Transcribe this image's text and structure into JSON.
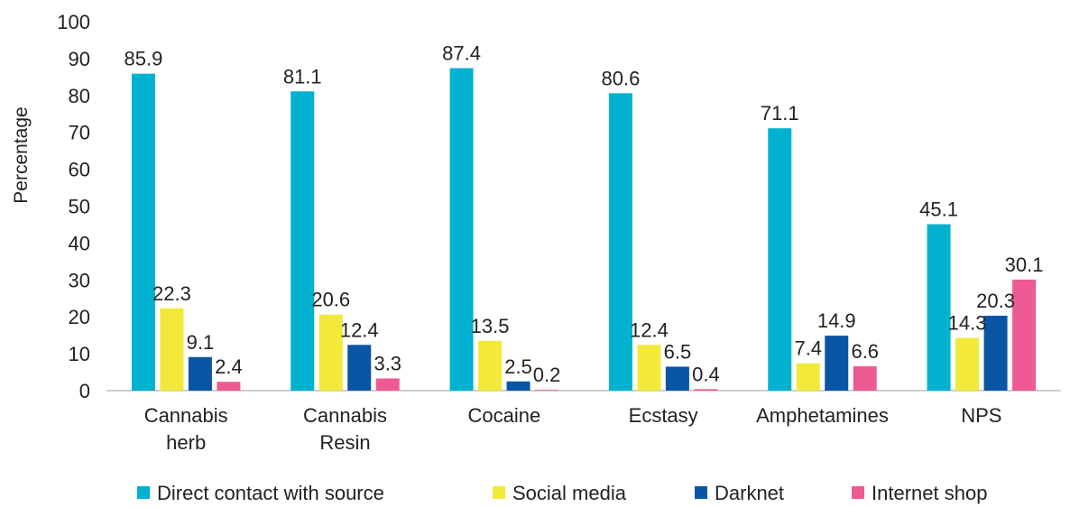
{
  "chart_data": {
    "type": "bar",
    "ylabel": "Percentage",
    "xlabel": "",
    "ylim": [
      0,
      100
    ],
    "yticks": [
      0,
      10,
      20,
      30,
      40,
      50,
      60,
      70,
      80,
      90,
      100
    ],
    "grid": false,
    "legend_position": "bottom",
    "categories": [
      [
        "Cannabis",
        "herb"
      ],
      [
        "Cannabis",
        "Resin"
      ],
      [
        "Cocaine"
      ],
      [
        "Ecstasy"
      ],
      [
        "Amphetamines"
      ],
      [
        "NPS"
      ]
    ],
    "series": [
      {
        "name": "Direct contact with source",
        "color": "#00B2CF",
        "values": [
          85.9,
          81.1,
          87.4,
          80.6,
          71.1,
          45.1
        ]
      },
      {
        "name": "Social media",
        "color": "#F2E93A",
        "values": [
          22.3,
          20.6,
          13.5,
          12.4,
          7.4,
          14.3
        ]
      },
      {
        "name": "Darknet",
        "color": "#0A56A5",
        "values": [
          9.1,
          12.4,
          2.5,
          6.5,
          14.9,
          20.3
        ]
      },
      {
        "name": "Internet shop",
        "color": "#EE5A94",
        "values": [
          2.4,
          3.3,
          0.2,
          0.4,
          6.6,
          30.1
        ]
      }
    ]
  }
}
